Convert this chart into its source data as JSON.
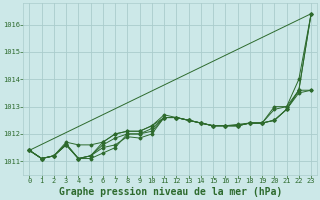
{
  "background_color": "#cce8e8",
  "grid_color": "#aacccc",
  "line_color": "#2d6a2d",
  "xlabel": "Graphe pression niveau de la mer (hPa)",
  "xlabel_fontsize": 7,
  "ylim": [
    1010.5,
    1016.8
  ],
  "xlim": [
    -0.5,
    23.5
  ],
  "yticks": [
    1011,
    1012,
    1013,
    1014,
    1015,
    1016
  ],
  "xticks": [
    0,
    1,
    2,
    3,
    4,
    5,
    6,
    7,
    8,
    9,
    10,
    11,
    12,
    13,
    14,
    15,
    16,
    17,
    18,
    19,
    20,
    21,
    22,
    23
  ],
  "series": [
    [
      1011.4,
      1011.1,
      1011.2,
      1011.6,
      1011.1,
      1011.1,
      1011.3,
      1011.5,
      1012.0,
      1012.0,
      1012.1,
      1012.6,
      1012.6,
      1012.5,
      1012.4,
      1012.3,
      1012.3,
      1012.35,
      1012.4,
      1012.4,
      1013.0,
      1013.0,
      1013.6,
      1016.4
    ],
    [
      1011.4,
      1011.1,
      1011.2,
      1011.6,
      1011.1,
      1011.2,
      1011.5,
      1011.6,
      1011.9,
      1011.85,
      1012.0,
      1012.6,
      1012.6,
      1012.5,
      1012.4,
      1012.3,
      1012.3,
      1012.3,
      1012.4,
      1012.4,
      1012.5,
      1012.9,
      1013.5,
      1013.6
    ],
    [
      1011.4,
      1011.1,
      1011.2,
      1011.6,
      1011.1,
      1011.2,
      1011.6,
      1011.85,
      1012.0,
      1012.0,
      1012.2,
      1012.6,
      1012.6,
      1012.5,
      1012.4,
      1012.3,
      1012.3,
      1012.3,
      1012.4,
      1012.4,
      1012.5,
      1012.9,
      1013.6,
      1013.6
    ],
    [
      1011.4,
      1011.1,
      1011.2,
      1011.65,
      1011.1,
      1011.2,
      1011.7,
      1012.0,
      1012.1,
      1012.1,
      1012.3,
      1012.7,
      1012.6,
      1012.5,
      1012.4,
      1012.3,
      1012.3,
      1012.3,
      1012.4,
      1012.4,
      1012.9,
      1013.0,
      1014.0,
      1016.4
    ],
    [
      1011.4,
      1011.1,
      1011.2,
      1011.7,
      1011.6,
      1011.6,
      1011.7,
      1012.0,
      1012.1,
      1012.1,
      1012.3,
      1012.6,
      1012.6,
      1012.5,
      1012.4,
      1012.3,
      1012.3,
      1012.3,
      1012.4,
      1012.4,
      1012.5,
      1012.9,
      1013.6,
      1016.4
    ]
  ],
  "diagonal_line": [
    1011.4,
    1016.4
  ]
}
